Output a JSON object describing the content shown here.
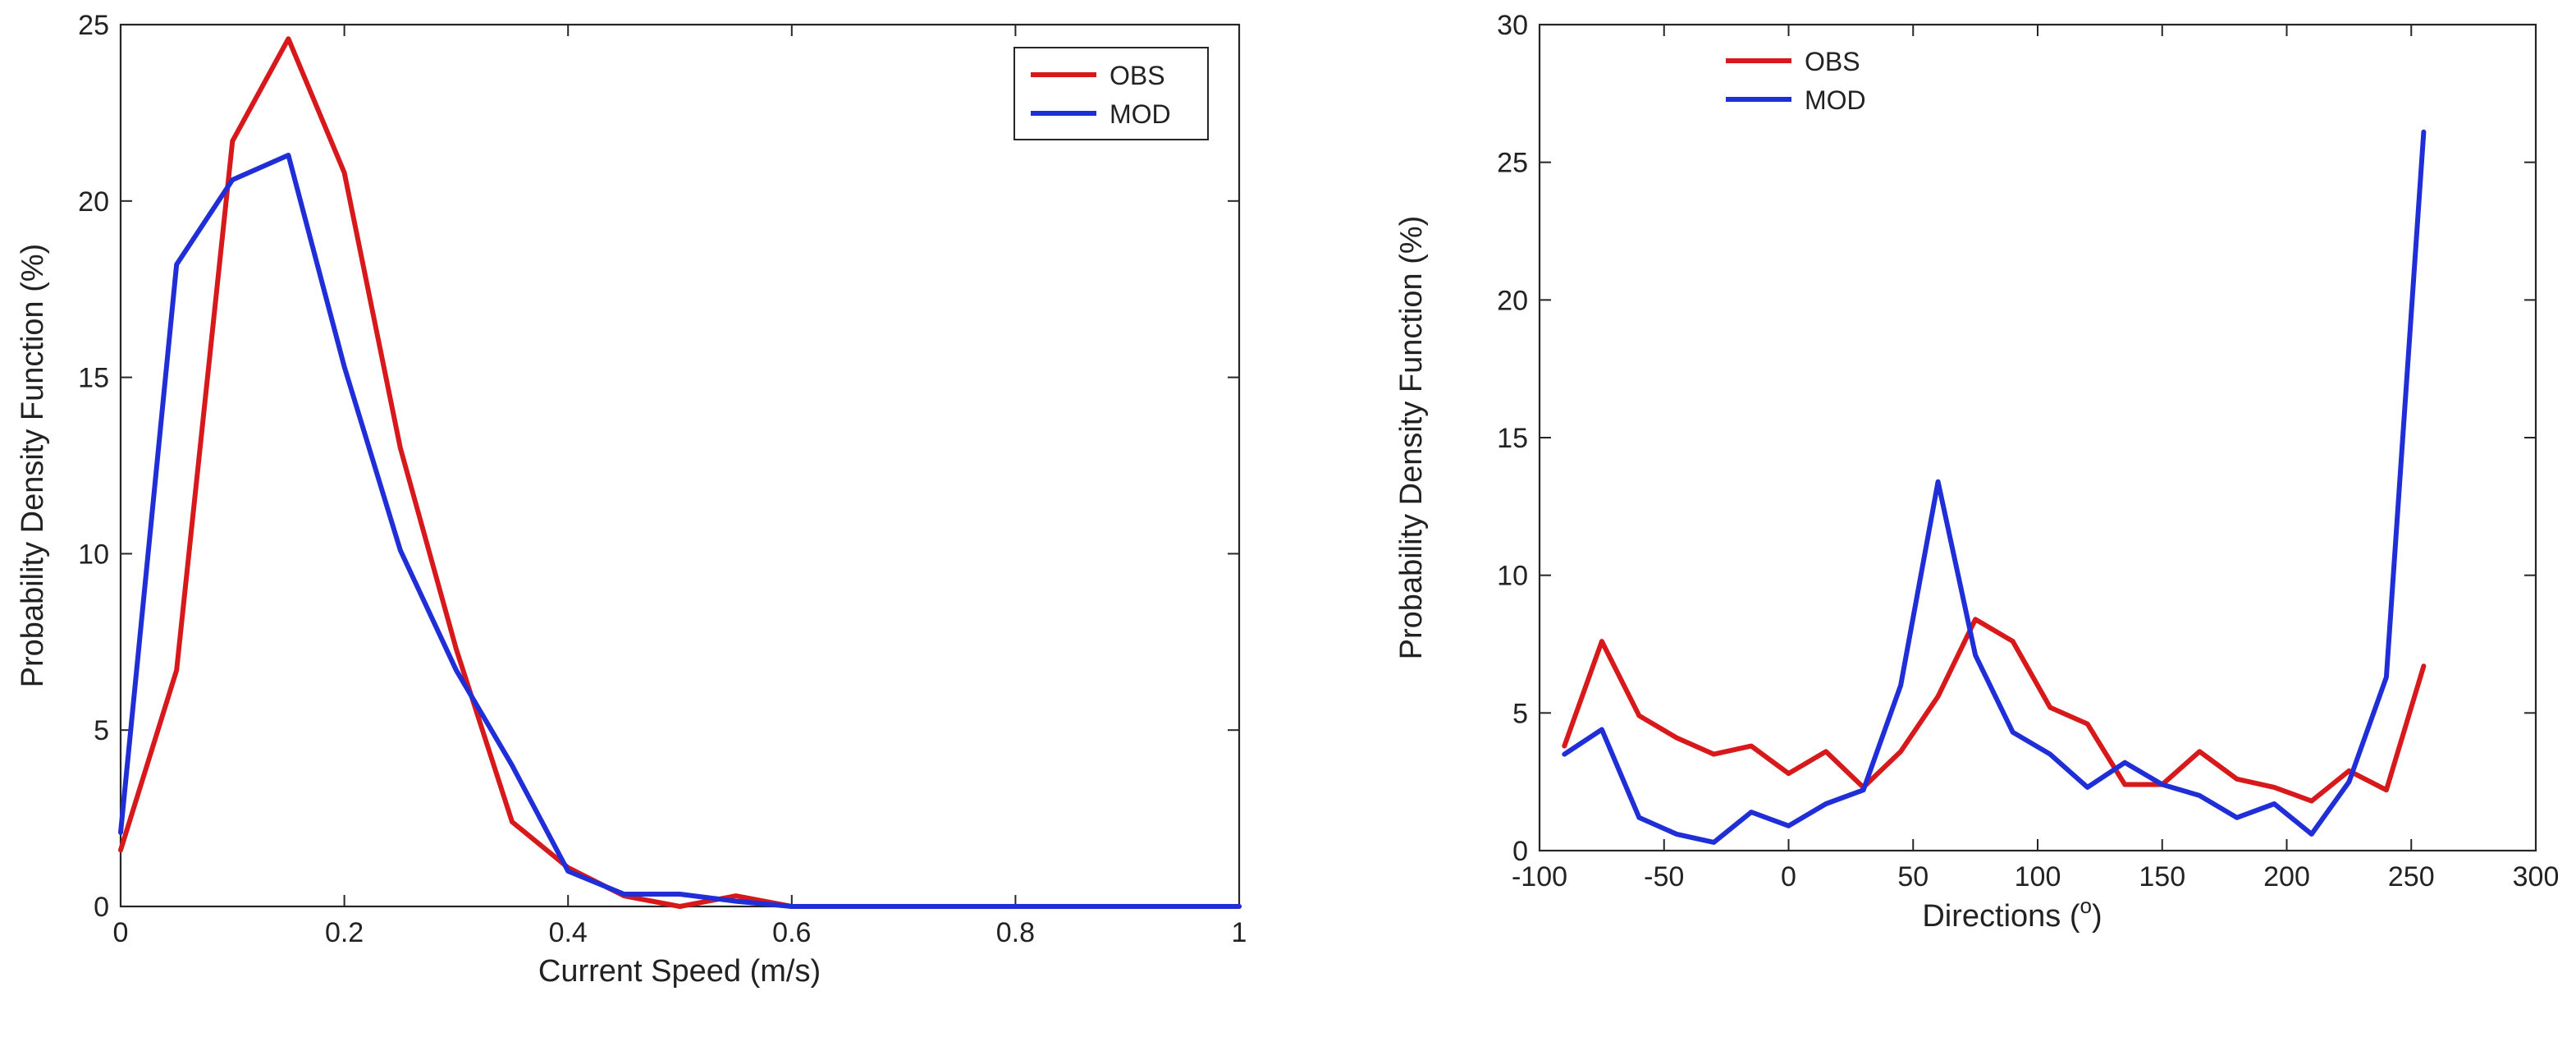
{
  "chart_data": [
    {
      "type": "line",
      "title": "",
      "xlabel": "Current Speed (m/s)",
      "ylabel": "Probability Density Function (%)",
      "xlim": [
        0,
        1
      ],
      "ylim": [
        0,
        25
      ],
      "xticks": [
        0,
        0.2,
        0.4,
        0.6,
        0.8,
        1
      ],
      "xtick_labels": [
        "0",
        "0.2",
        "0.4",
        "0.6",
        "0.8",
        "1"
      ],
      "yticks": [
        0,
        5,
        10,
        15,
        20,
        25
      ],
      "ytick_labels": [
        "0",
        "5",
        "10",
        "15",
        "20",
        "25"
      ],
      "grid": false,
      "legend_position": "top-right",
      "x": [
        0,
        0.05,
        0.1,
        0.15,
        0.2,
        0.25,
        0.3,
        0.35,
        0.4,
        0.45,
        0.5,
        0.55,
        0.6,
        0.65,
        0.7,
        0.75,
        0.8,
        0.85,
        0.9,
        0.95,
        1.0
      ],
      "series": [
        {
          "name": "OBS",
          "color": "#d7191c",
          "values": [
            1.6,
            6.7,
            21.7,
            24.6,
            20.8,
            13.0,
            7.3,
            2.4,
            1.1,
            0.3,
            0.0,
            0.3,
            0.0,
            0,
            0,
            0,
            0,
            0,
            0,
            0,
            0
          ]
        },
        {
          "name": "MOD",
          "color": "#1f2ed6",
          "values": [
            2.1,
            18.2,
            20.6,
            21.3,
            15.3,
            10.1,
            6.7,
            4.0,
            1.0,
            0.35,
            0.35,
            0.15,
            0.0,
            0,
            0,
            0,
            0,
            0,
            0,
            0,
            0
          ]
        }
      ]
    },
    {
      "type": "line",
      "title": "",
      "xlabel": "Directions (°)",
      "xlabel_text": "Directions (",
      "xlabel_sup": "o",
      "xlabel_close": ")",
      "ylabel": "Probability Density Function (%)",
      "xlim": [
        -100,
        300
      ],
      "ylim": [
        0,
        30
      ],
      "xticks": [
        -100,
        -50,
        0,
        50,
        100,
        150,
        200,
        250,
        300
      ],
      "xtick_labels": [
        "-100",
        "-50",
        "0",
        "50",
        "100",
        "150",
        "200",
        "250",
        "300"
      ],
      "yticks": [
        0,
        5,
        10,
        15,
        20,
        25,
        30
      ],
      "ytick_labels": [
        "0",
        "5",
        "10",
        "15",
        "20",
        "25",
        "30"
      ],
      "grid": false,
      "legend_position": "top-left",
      "x": [
        -90,
        -75,
        -60,
        -45,
        -30,
        -15,
        0,
        15,
        30,
        45,
        60,
        75,
        90,
        105,
        120,
        135,
        150,
        165,
        180,
        195,
        210,
        225,
        240,
        255
      ],
      "series": [
        {
          "name": "OBS",
          "color": "#d7191c",
          "values": [
            3.8,
            7.6,
            4.9,
            4.1,
            3.5,
            3.8,
            2.8,
            3.6,
            2.3,
            3.6,
            5.6,
            8.4,
            7.6,
            5.2,
            4.6,
            2.4,
            2.4,
            3.6,
            2.6,
            2.3,
            1.8,
            2.9,
            2.2,
            6.7
          ]
        },
        {
          "name": "MOD",
          "color": "#1f2ed6",
          "values": [
            3.5,
            4.4,
            1.2,
            0.6,
            0.3,
            1.4,
            0.9,
            1.7,
            2.2,
            6.0,
            13.4,
            7.1,
            4.3,
            3.5,
            2.3,
            3.2,
            2.4,
            2.0,
            1.2,
            1.7,
            0.6,
            2.5,
            6.3,
            26.1
          ]
        }
      ]
    }
  ]
}
